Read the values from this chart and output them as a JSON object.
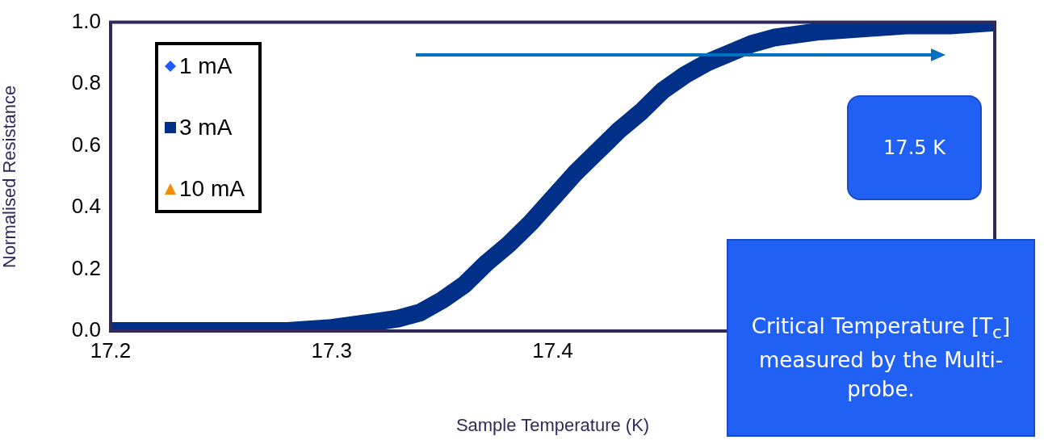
{
  "chart_data": {
    "type": "line",
    "xlabel": "Sample Temperature (K)",
    "ylabel": "Normalised Resistance",
    "x": [
      17.2,
      17.22,
      17.24,
      17.26,
      17.28,
      17.3,
      17.31,
      17.32,
      17.33,
      17.34,
      17.35,
      17.36,
      17.37,
      17.38,
      17.39,
      17.4,
      17.41,
      17.42,
      17.43,
      17.44,
      17.45,
      17.46,
      17.47,
      17.48,
      17.49,
      17.5,
      17.52,
      17.54,
      17.56,
      17.58,
      17.6
    ],
    "series": [
      {
        "name": "1 mA",
        "color": "#1f5cff",
        "marker": "diamond",
        "values": [
          null,
          null,
          null,
          null,
          null,
          null,
          null,
          null,
          null,
          null,
          null,
          null,
          null,
          null,
          null,
          null,
          null,
          null,
          null,
          null,
          null,
          null,
          null,
          null,
          null,
          null,
          null,
          null,
          null,
          null,
          null
        ]
      },
      {
        "name": "3 mA",
        "color": "#003087",
        "marker": "square",
        "values": [
          0.0,
          0.0,
          0.0,
          0.0,
          0.0,
          0.01,
          0.02,
          0.03,
          0.04,
          0.06,
          0.1,
          0.15,
          0.22,
          0.28,
          0.35,
          0.43,
          0.51,
          0.58,
          0.65,
          0.71,
          0.78,
          0.83,
          0.87,
          0.9,
          0.93,
          0.95,
          0.97,
          0.98,
          0.99,
          0.99,
          1.0
        ]
      },
      {
        "name": "10 mA",
        "color": "#f28c00",
        "marker": "triangle",
        "values": [
          null,
          null,
          null,
          null,
          null,
          null,
          null,
          null,
          null,
          null,
          null,
          null,
          null,
          null,
          null,
          null,
          null,
          null,
          null,
          null,
          null,
          null,
          null,
          null,
          null,
          null,
          null,
          null,
          null,
          null,
          null
        ]
      }
    ],
    "xlim": [
      17.2,
      17.6
    ],
    "xticks": [
      17.2,
      17.3,
      17.4
    ],
    "ylim": [
      0,
      1
    ],
    "yticks": [
      {
        "value": 0,
        "label": "0.0"
      },
      {
        "value": 0.2,
        "label": "0.2"
      },
      {
        "value": 0.4,
        "label": "0.4"
      },
      {
        "value": 0.6,
        "label": "0.6"
      },
      {
        "value": 0.8,
        "label": "0.8"
      },
      {
        "value": 1,
        "label": "1.0"
      }
    ],
    "grid": false,
    "legend": "top left",
    "annotations": [
      "17.5 K",
      "Critical Temperature [T$_{c}$] measured by the Multi-probe."
    ]
  }
}
